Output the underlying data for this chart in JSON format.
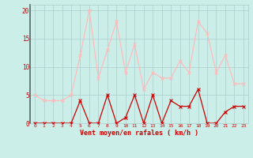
{
  "hours": [
    0,
    1,
    2,
    3,
    4,
    5,
    6,
    7,
    8,
    9,
    10,
    11,
    12,
    13,
    14,
    15,
    16,
    17,
    18,
    19,
    20,
    21,
    22,
    23
  ],
  "wind_avg": [
    0,
    0,
    0,
    0,
    0,
    4,
    0,
    0,
    5,
    0,
    1,
    5,
    0,
    5,
    0,
    4,
    3,
    3,
    6,
    0,
    0,
    2,
    3,
    3
  ],
  "wind_gust": [
    5,
    4,
    4,
    4,
    5,
    12,
    20,
    8,
    13,
    18,
    9,
    14,
    6,
    9,
    8,
    8,
    11,
    9,
    18,
    16,
    9,
    12,
    7,
    7
  ],
  "xlabel": "Vent moyen/en rafales ( km/h )",
  "ylim": [
    0,
    21
  ],
  "yticks": [
    0,
    5,
    10,
    15,
    20
  ],
  "color_avg": "#cc0000",
  "color_gust": "#ffbbbb",
  "bg_color": "#cceee8",
  "grid_color": "#aacccc",
  "spine_color": "#556666",
  "marker_size": 3,
  "linewidth": 0.9
}
